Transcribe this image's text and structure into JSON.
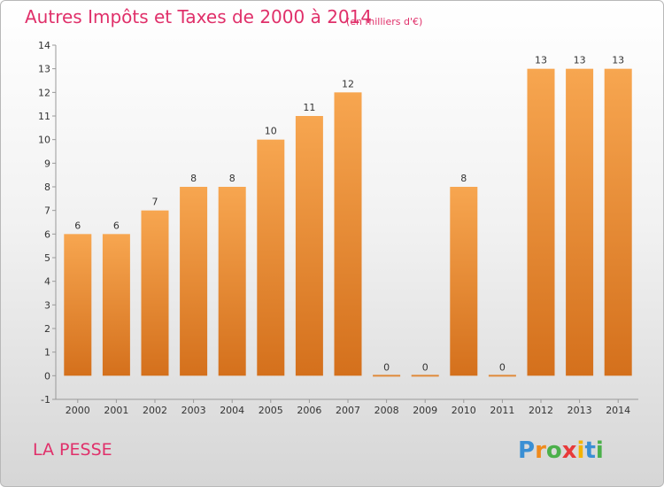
{
  "header": {
    "title": "Autres Impôts et Taxes de 2000 à 2014",
    "subtitle": "(en milliers d'€)"
  },
  "footer": {
    "commune": "LA PESSE",
    "logo_text": "Proxiti"
  },
  "colors": {
    "title": "#e0306a",
    "bar_light": "#f7a650",
    "bar_dark": "#d4701c"
  },
  "chart_data": {
    "type": "bar",
    "title": "Autres Impôts et Taxes de 2000 à 2014",
    "subtitle": "(en milliers d'€)",
    "categories": [
      "2000",
      "2001",
      "2002",
      "2003",
      "2004",
      "2005",
      "2006",
      "2007",
      "2008",
      "2009",
      "2010",
      "2011",
      "2012",
      "2013",
      "2014"
    ],
    "values": [
      6,
      6,
      7,
      8,
      8,
      10,
      11,
      12,
      0,
      0,
      8,
      0,
      13,
      13,
      13
    ],
    "ylim": [
      -1,
      14
    ],
    "yticks": [
      -1,
      0,
      1,
      2,
      3,
      4,
      5,
      6,
      7,
      8,
      9,
      10,
      11,
      12,
      13,
      14
    ],
    "xlabel": "",
    "ylabel": "",
    "grid": false,
    "legend": "none"
  }
}
